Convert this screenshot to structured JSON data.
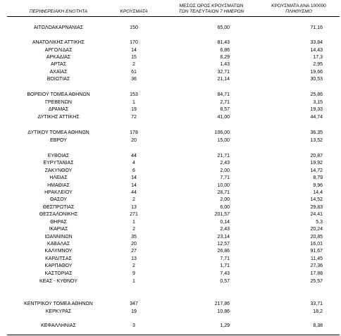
{
  "header": {
    "region": "ΠΕΡΙΦΕΡΕΙΑΚΗ ΕΝΟΤΗΤΑ",
    "cases": "ΚΡΟΥΣΜΑΤΑ",
    "avg_line1": "ΜΕΣΟΣ ΟΡΟΣ ΚΡΟΥΣΜΑΤΩΝ",
    "avg_line2": "ΤΩΝ ΤΕΛΕΥΤΑΙΩΝ 7 ΗΜΕΡΩΝ",
    "per100k_line1": "ΚΡΟΥΣΜΑΤΑ ΑΝΑ 100000",
    "per100k_line2": "ΠΛΗΘΥΣΜΟ"
  },
  "rows": [
    {
      "region": "ΑΙΤΩΛΟΑΚΑΡΝΑΝΙΑΣ",
      "cases": "150",
      "avg": "65,00",
      "per100k": "71,16"
    },
    {
      "region": "ΑΝΑΤΟΛΙΚΗΣ ΑΤΤΙΚΗΣ",
      "cases": "170",
      "avg": "81,43",
      "per100k": "33,84"
    },
    {
      "region": "ΑΡΓΟΛΙΔΑΣ",
      "cases": "14",
      "avg": "6,86",
      "per100k": "14,43"
    },
    {
      "region": "ΑΡΚΑΔΙΑΣ",
      "cases": "15",
      "avg": "8,29",
      "per100k": "17,3"
    },
    {
      "region": "ΑΡΤΑΣ",
      "cases": "2",
      "avg": "1,43",
      "per100k": "2,95"
    },
    {
      "region": "ΑΧΑΪΑΣ",
      "cases": "61",
      "avg": "32,71",
      "per100k": "19,66"
    },
    {
      "region": "ΒΟΙΩΤΙΑΣ",
      "cases": "36",
      "avg": "21,14",
      "per100k": "30,53"
    },
    {
      "region": "ΒΟΡΕΙΟΥ ΤΟΜΕΑ ΑΘΗΝΩΝ",
      "cases": "153",
      "avg": "84,71",
      "per100k": "25,86"
    },
    {
      "region": "ΓΡΕΒΕΝΩΝ",
      "cases": "1",
      "avg": "2,71",
      "per100k": "3,15"
    },
    {
      "region": "ΔΡΑΜΑΣ",
      "cases": "19",
      "avg": "8,57",
      "per100k": "19,33"
    },
    {
      "region": "ΔΥΤΙΚΗΣ ΑΤΤΙΚΗΣ",
      "cases": "72",
      "avg": "41,00",
      "per100k": "44,74"
    },
    {
      "region": "ΔΥΤΙΚΟΥ ΤΟΜΕΑ ΑΘΗΝΩΝ",
      "cases": "178",
      "avg": "106,00",
      "per100k": "36,35"
    },
    {
      "region": "ΕΒΡΟΥ",
      "cases": "20",
      "avg": "15,00",
      "per100k": "13,52"
    },
    {
      "region": "ΕΥΒΟΙΑΣ",
      "cases": "44",
      "avg": "21,71",
      "per100k": "20,87"
    },
    {
      "region": "ΕΥΡΥΤΑΝΙΑΣ",
      "cases": "4",
      "avg": "2,43",
      "per100k": "19,92"
    },
    {
      "region": "ΖΑΚΥΝΘΟΥ",
      "cases": "6",
      "avg": "2,00",
      "per100k": "14,72"
    },
    {
      "region": "ΗΛΕΙΑΣ",
      "cases": "14",
      "avg": "7,71",
      "per100k": "8,79"
    },
    {
      "region": "ΗΜΑΘΙΑΣ",
      "cases": "14",
      "avg": "10,00",
      "per100k": "9,96"
    },
    {
      "region": "ΗΡΑΚΛΕΙΟΥ",
      "cases": "44",
      "avg": "28,71",
      "per100k": "14,4"
    },
    {
      "region": "ΘΑΣΟΥ",
      "cases": "2",
      "avg": "2,00",
      "per100k": "14,52"
    },
    {
      "region": "ΘΕΣΠΡΩΤΙΑΣ",
      "cases": "13",
      "avg": "6,00",
      "per100k": "29,83"
    },
    {
      "region": "ΘΕΣΣΑΛΟΝΙΚΗΣ",
      "cases": "271",
      "avg": "201,57",
      "per100k": "24,41"
    },
    {
      "region": "ΘΗΡΑΣ",
      "cases": "1",
      "avg": "0,14",
      "per100k": "5,3"
    },
    {
      "region": "ΙΚΑΡΙΑΣ",
      "cases": "2",
      "avg": "2,43",
      "per100k": "20,24"
    },
    {
      "region": "ΙΩΑΝΝΙΝΩΝ",
      "cases": "35",
      "avg": "23,14",
      "per100k": "20,85"
    },
    {
      "region": "ΚΑΒΑΛΑΣ",
      "cases": "20",
      "avg": "12,57",
      "per100k": "16,01"
    },
    {
      "region": "ΚΑΛΥΜΝΟΥ",
      "cases": "27",
      "avg": "26,86",
      "per100k": "91,67"
    },
    {
      "region": "ΚΑΡΔΙΤΣΑΣ",
      "cases": "13",
      "avg": "7,71",
      "per100k": "11,45"
    },
    {
      "region": "ΚΑΡΠΑΘΟΥ",
      "cases": "2",
      "avg": "1,71",
      "per100k": "27,36"
    },
    {
      "region": "ΚΑΣΤΟΡΙΑΣ",
      "cases": "9",
      "avg": "7,43",
      "per100k": "17,88"
    },
    {
      "region": "ΚΕΑΣ - ΚΥΘΝΟΥ",
      "cases": "1",
      "avg": "0,57",
      "per100k": "25,57"
    },
    {
      "region": "ΚΕΝΤΡΙΚΟΥ ΤΟΜΕΑ ΑΘΗΝΩΝ",
      "cases": "347",
      "avg": "217,86",
      "per100k": "33,71"
    },
    {
      "region": "ΚΕΡΚΥΡΑΣ",
      "cases": "19",
      "avg": "10,86",
      "per100k": "18,2"
    },
    {
      "region": "ΚΕΦΑΛΛΗΝΙΑΣ",
      "cases": "3",
      "avg": "1,29",
      "per100k": "8,38"
    }
  ]
}
